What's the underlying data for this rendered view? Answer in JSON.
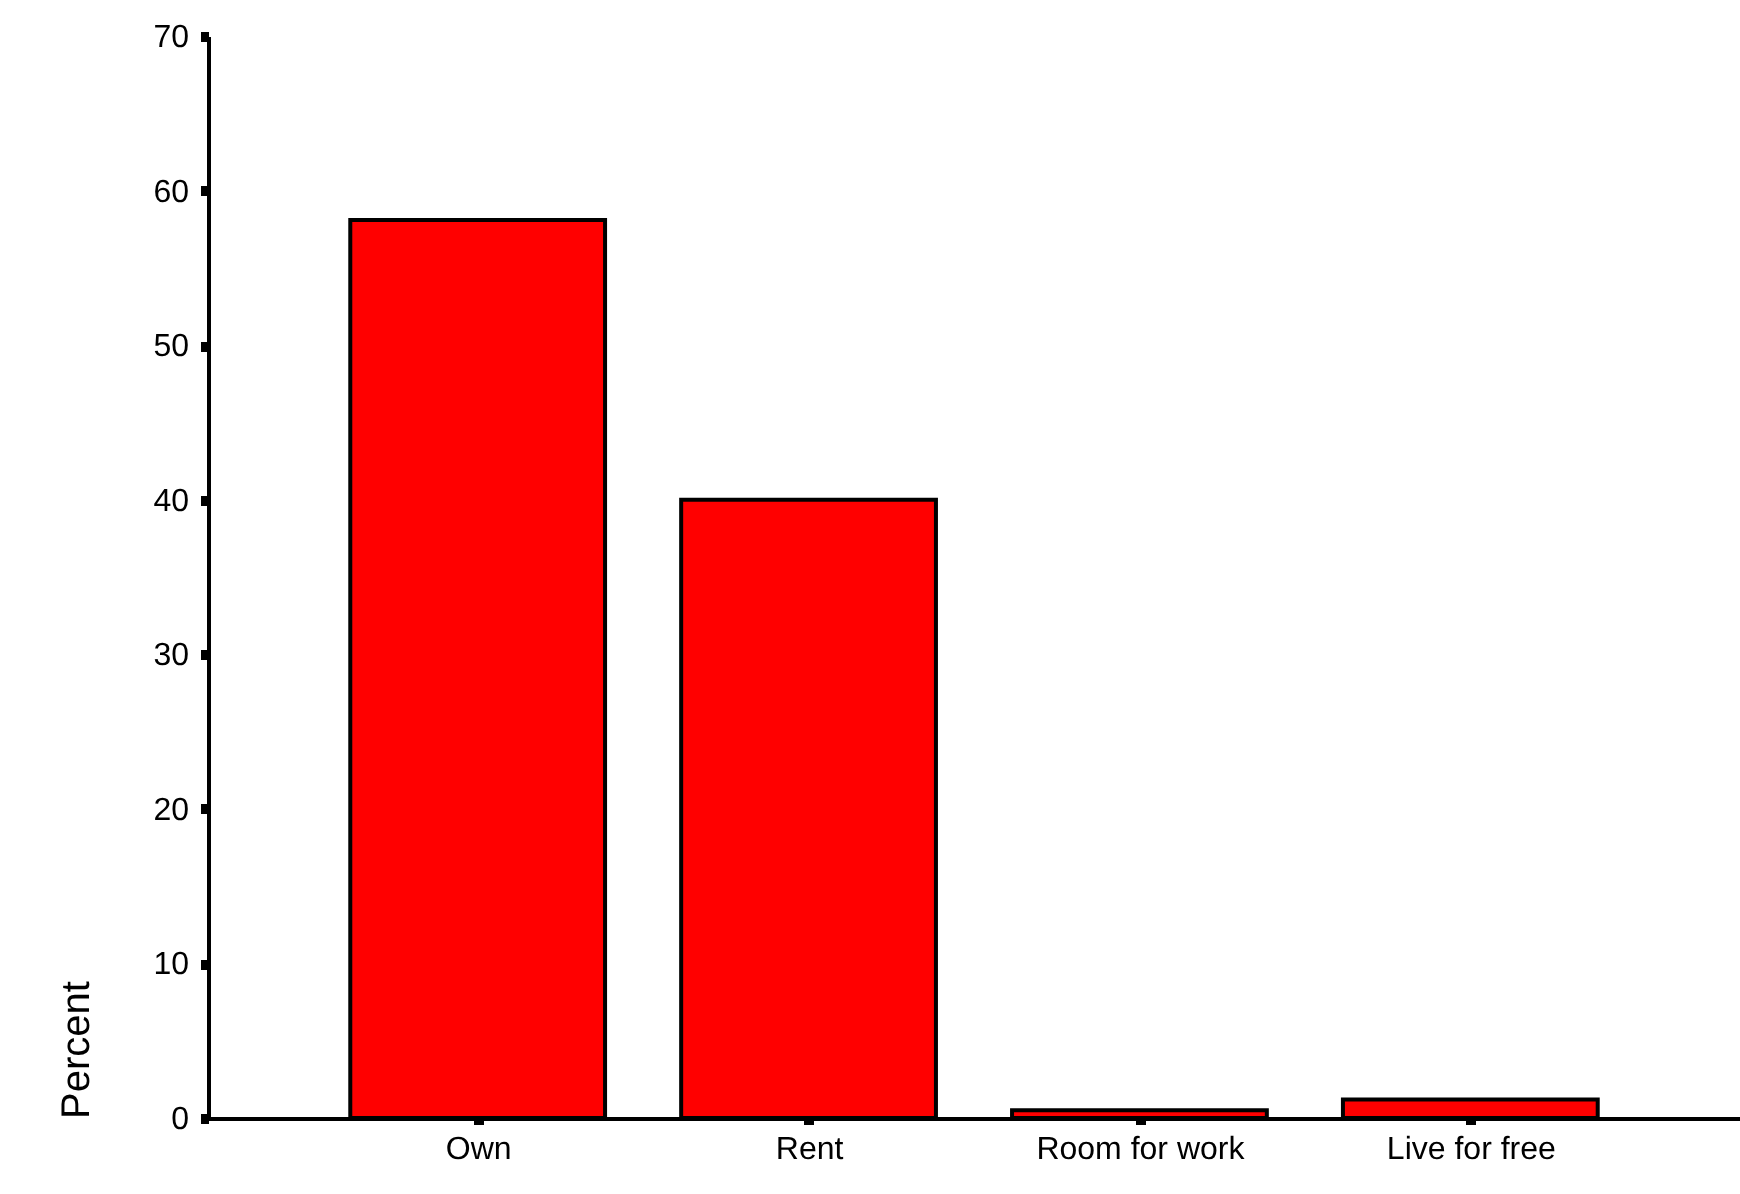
{
  "chart_data": {
    "type": "bar",
    "ylabel": "Percent",
    "categories": [
      "Own",
      "Rent",
      "Room for work",
      "Live for free"
    ],
    "values": [
      58.1,
      40.0,
      0.5,
      1.2
    ],
    "color": "#ff0000",
    "ylim": [
      0,
      70
    ],
    "yticks": [
      0,
      10,
      20,
      30,
      40,
      50,
      60,
      70
    ],
    "grid": false
  }
}
